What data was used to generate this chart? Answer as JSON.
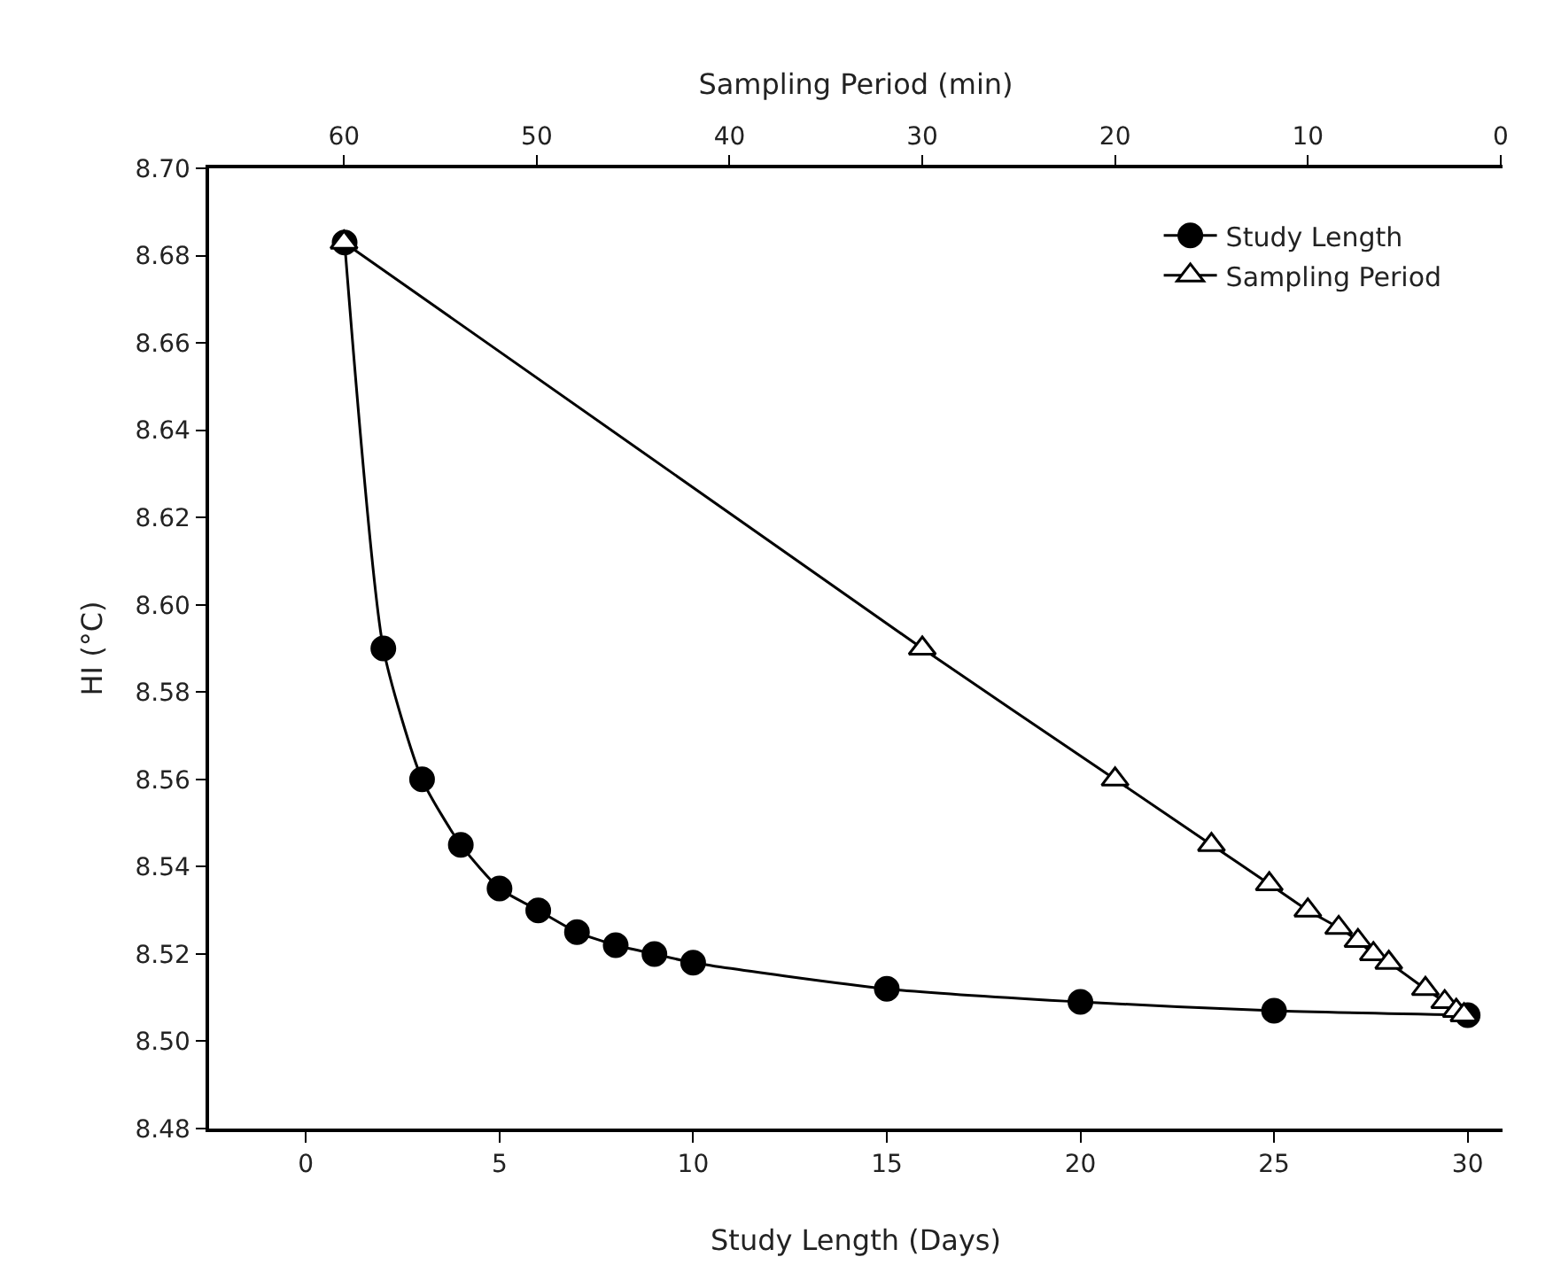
{
  "chart_data": {
    "type": "line",
    "xlabel": "Study Length (Days)",
    "x2label": "Sampling Period (min)",
    "ylabel": "HI (°C)",
    "xlim": [
      -2.5,
      30.9
    ],
    "xticks": [
      0,
      5,
      10,
      15,
      20,
      25,
      30
    ],
    "x2lim": [
      67,
      -0.1
    ],
    "x2ticks": [
      60,
      50,
      40,
      30,
      20,
      10,
      0
    ],
    "ylim": [
      8.48,
      8.7
    ],
    "yticks": [
      8.48,
      {
        "value": 8.5,
        "label": "8.50"
      },
      8.52,
      8.54,
      8.56,
      8.58,
      {
        "value": 8.6,
        "label": "8.60"
      },
      8.62,
      8.64,
      8.66,
      8.68,
      {
        "value": 8.7,
        "label": "8.70"
      }
    ],
    "legend": "top right",
    "line_style": "solid",
    "series": [
      {
        "name": "Study Length",
        "color": "#000000",
        "marker": "circle",
        "x": [
          1,
          2,
          3,
          4,
          5,
          6,
          7,
          8,
          9,
          10,
          15,
          20,
          25,
          30
        ],
        "values": [
          8.683,
          8.59,
          8.56,
          8.545,
          8.535,
          8.53,
          8.525,
          8.522,
          8.52,
          8.518,
          8.512,
          8.509,
          8.507,
          8.506
        ]
      },
      {
        "name": "Sampling Period",
        "color": "#000000",
        "marker": "triangle",
        "axis": "x2",
        "x": [
          60,
          30,
          20,
          15,
          12,
          10,
          8.4,
          7.4,
          6.6,
          5.8,
          3.9,
          2.9,
          2.3,
          1.9
        ],
        "values": [
          8.683,
          8.59,
          8.56,
          8.545,
          8.536,
          8.53,
          8.526,
          8.523,
          8.52,
          8.518,
          8.512,
          8.509,
          8.507,
          8.506
        ]
      }
    ]
  }
}
